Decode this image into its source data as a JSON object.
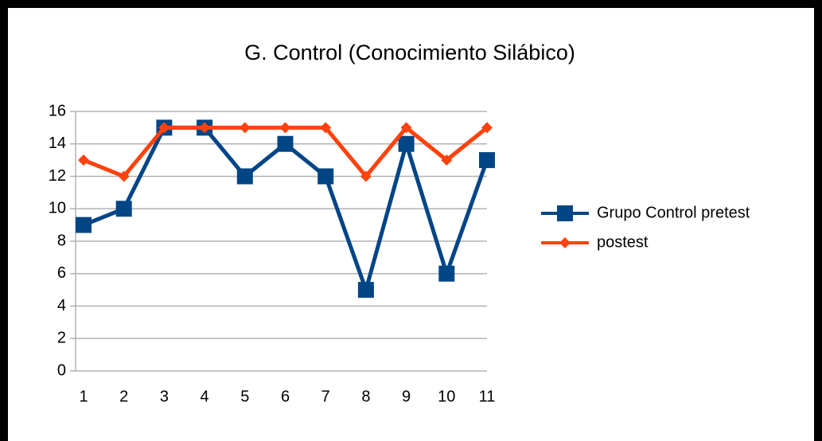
{
  "chart_data": {
    "type": "line",
    "title": "G. Control (Conocimiento Silábico)",
    "categories": [
      "1",
      "2",
      "3",
      "4",
      "5",
      "6",
      "7",
      "8",
      "9",
      "10",
      "11"
    ],
    "series": [
      {
        "name": "Grupo Control pretest",
        "color": "#004586",
        "marker": "square",
        "values": [
          9,
          10,
          15,
          15,
          12,
          14,
          12,
          5,
          14,
          6,
          13
        ]
      },
      {
        "name": "postest",
        "color": "#ff420e",
        "marker": "diamond",
        "values": [
          13,
          12,
          15,
          15,
          15,
          15,
          15,
          12,
          15,
          13,
          15
        ]
      }
    ],
    "ylim": [
      0,
      16
    ],
    "yticks": [
      0,
      2,
      4,
      6,
      8,
      10,
      12,
      14,
      16
    ],
    "grid": true,
    "legend": "right"
  }
}
